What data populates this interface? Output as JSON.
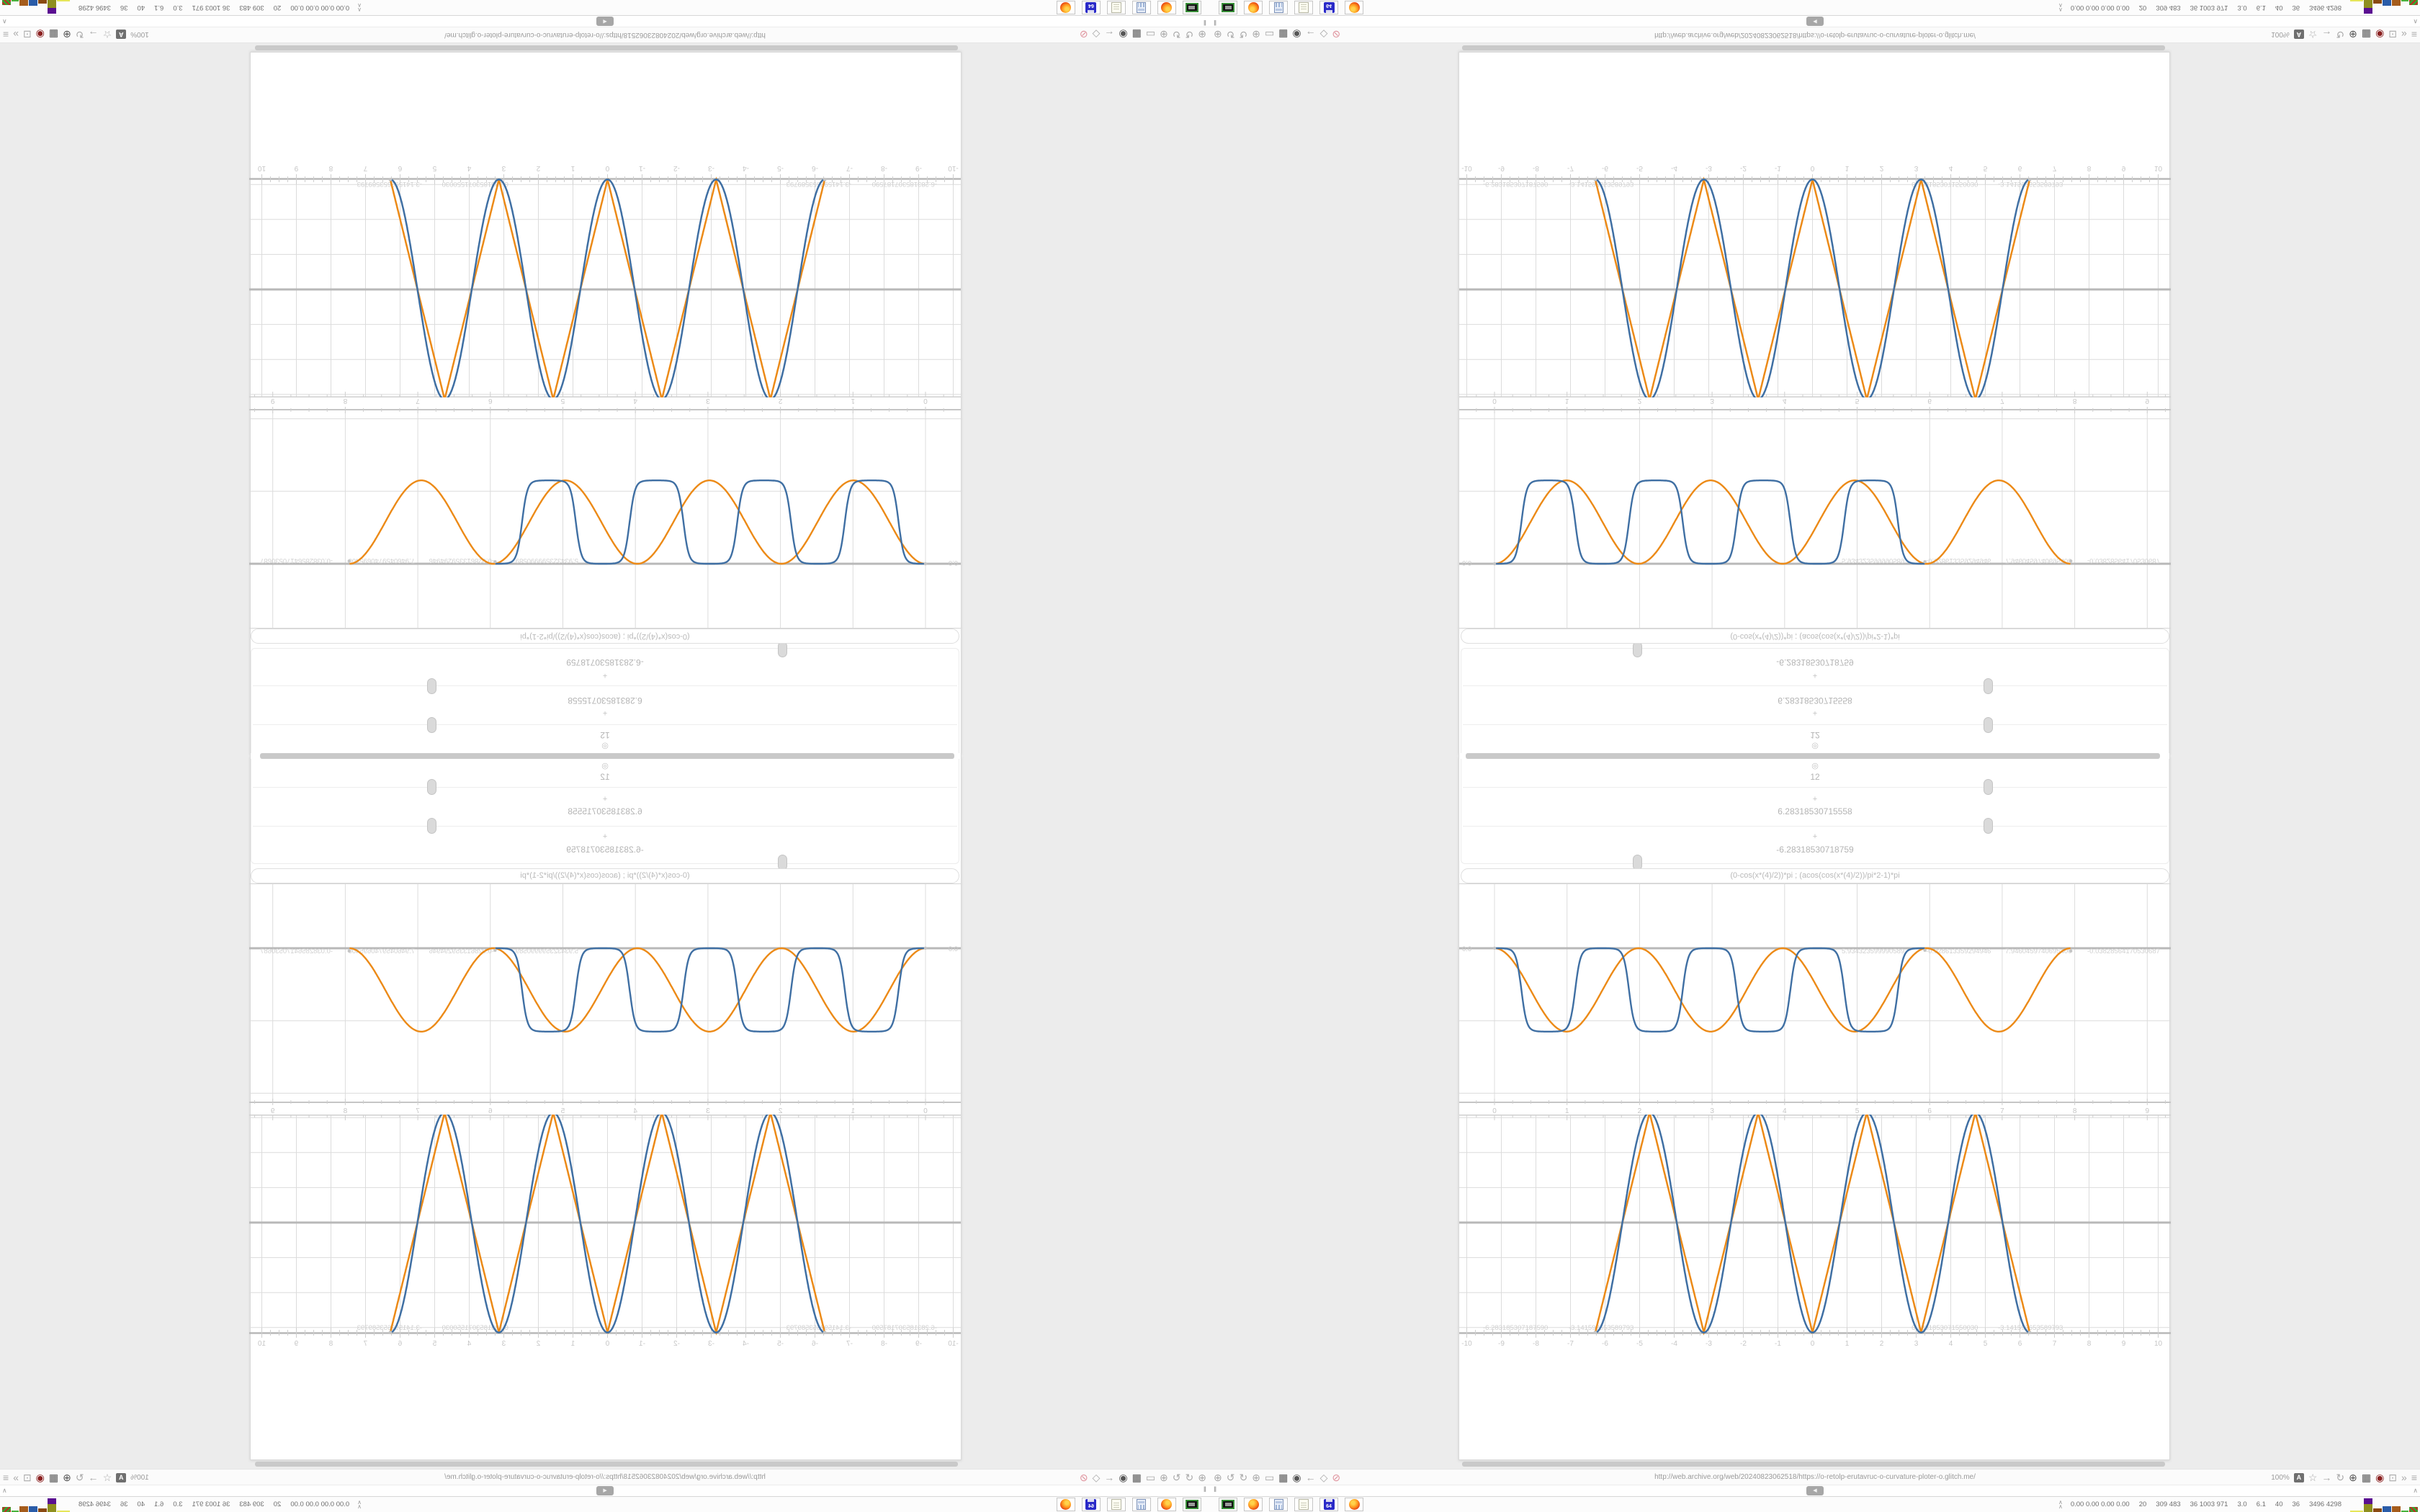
{
  "browser": {
    "url": "http://web.archive.org/web/20240823062518/https://o-retolp-erutavruc-o-curvature-ploter-o.glitch.me/",
    "zoom_level": "100%",
    "left_icons": [
      {
        "name": "zoom-circle-icon",
        "glyph": "⊕"
      },
      {
        "name": "gauge-left-icon",
        "glyph": "↺"
      },
      {
        "name": "gauge-right-icon",
        "glyph": "↻"
      },
      {
        "name": "globe-plus-icon",
        "glyph": "⊕"
      },
      {
        "name": "folder-icon",
        "glyph": "▭"
      },
      {
        "name": "trash-icon",
        "glyph": "▦",
        "dark": true
      },
      {
        "name": "badge-icon",
        "glyph": "◉",
        "dark": true
      },
      {
        "name": "back-arrow-icon",
        "glyph": "←"
      },
      {
        "name": "shield-outline-icon",
        "glyph": "◇"
      },
      {
        "name": "no-bookmark-icon",
        "glyph": "⊘",
        "color": "#de8f9a"
      }
    ],
    "right_icons": [
      {
        "name": "translate-icon",
        "glyph": "A",
        "boxed": true
      },
      {
        "name": "star-icon",
        "glyph": "☆"
      },
      {
        "name": "forward-arrow-icon",
        "glyph": "→"
      },
      {
        "name": "reload-icon",
        "glyph": "↻"
      },
      {
        "name": "globe-icon",
        "glyph": "⊕",
        "dark": true
      },
      {
        "name": "trash-icon-2",
        "glyph": "▦",
        "dark": true
      },
      {
        "name": "shield-alert-icon",
        "glyph": "◉",
        "color": "#8a2020"
      },
      {
        "name": "puzzle-icon",
        "glyph": "⊡"
      },
      {
        "name": "overflow-chevrons-icon",
        "glyph": "»"
      },
      {
        "name": "menu-icon",
        "glyph": "≡"
      }
    ],
    "substrip": {
      "left_glyph": "‖",
      "badge_glyph": "◀",
      "right_glyph": "∧"
    }
  },
  "status_bar": {
    "expand_glyph": "∧",
    "stats": [
      "0.00 0.00 0.00 0.00",
      "20",
      "309 483",
      "36 1003 971",
      "3.0",
      "6.1",
      "40",
      "36",
      "3496 4298"
    ],
    "apps": [
      "terminal",
      "firefox",
      "calculator",
      "notepad",
      "floppy64",
      "firefox"
    ],
    "blocks": [
      {
        "color": "#e6e65a",
        "w": 18,
        "h": 2
      },
      {
        "color": "#8f8f1e",
        "w": 12,
        "h": 11,
        "cap_color": "#5a0f91",
        "cap_h": 8
      },
      {
        "color": "#8a4a12",
        "w": 12,
        "h": 5
      },
      {
        "color": "#2a5ca8",
        "w": 12,
        "h": 8
      },
      {
        "color": "#a55c1c",
        "w": 12,
        "h": 8
      },
      {
        "color": "#49b23c",
        "w": 10,
        "h": 2
      },
      {
        "color": "#3f9d2f",
        "w": 12,
        "h": 7,
        "speckle": "#cc2222"
      }
    ]
  },
  "page": {
    "rows": [
      {
        "icon": "◎",
        "value": "12"
      },
      {
        "icon": "+",
        "value": "6.28318530715558"
      },
      {
        "icon": "+",
        "value": "-6.28318530718759"
      }
    ],
    "formula": "(0-cos(x*(4)/2))*pi ; (acos(cos(x*(4)/2))/pi*2-1)*pi"
  },
  "chart_data": [
    {
      "type": "line",
      "panel": "upper-wave-panel",
      "x_range": [
        -0.49,
        9.32
      ],
      "y_range": [
        -2.14,
        0.89
      ],
      "grid": true,
      "x_ticks": [
        "0",
        "1",
        "2",
        "3",
        "4",
        "5",
        "6",
        "7",
        "8",
        "9"
      ],
      "zero_line_label": "0.0",
      "series": [
        {
          "name": "blue-smoothed-square",
          "color": "#3f6fa3",
          "shape": "smoothed_square",
          "depth": -1.15,
          "period": 1.4834,
          "t_start": 0,
          "t_end": 5.934323599990589
        },
        {
          "name": "orange-cosine",
          "color": "#ec8a17",
          "shape": "cosine_dip",
          "depth": -1.15,
          "period": 1.9865,
          "t_start": 0,
          "t_end": 7.94604597406954
        }
      ],
      "endpoint_labels": [
        {
          "text": "5.934323599990589",
          "x": 531
        },
        {
          "text": "-0.028613359294946",
          "x": 648
        },
        {
          "text": "7.9460459740695400",
          "x": 758
        },
        {
          "text": "-0.03828564170530687",
          "x": 872
        }
      ]
    },
    {
      "type": "line",
      "panel": "lower-peaks-panel",
      "x_range": [
        -10.3,
        10.3
      ],
      "y_range": [
        -3.25,
        3.1
      ],
      "grid": true,
      "x_ticks": [
        "-10",
        "-9",
        "-8",
        "-7",
        "-6",
        "-5",
        "-4",
        "-3",
        "-2",
        "-1",
        "0",
        "1",
        "2",
        "3",
        "4",
        "5",
        "6",
        "7",
        "8",
        "9",
        "10"
      ],
      "series": [
        {
          "name": "blue-sine",
          "color": "#3f6fa3",
          "shape": "sine",
          "formula": "y = -pi*cos(2x)",
          "x_span": [
            -6.283185307,
            6.283185307
          ],
          "amplitude": 3.14159265
        },
        {
          "name": "orange-triangle",
          "color": "#ec8a17",
          "shape": "triangle",
          "formula": "y = pi*tri(2x)",
          "x_span": [
            -6.283185307,
            6.283185307
          ],
          "amplitude": 3.14159265
        }
      ],
      "endpoint_labels": [
        {
          "text": "-6.283185307187590",
          "x": 33
        },
        {
          "text": "-3.141592653589793",
          "x": 152
        },
        {
          "text": "6.2831853071550030",
          "x": 628
        },
        {
          "text": "-3.141592653589793",
          "x": 748
        }
      ]
    }
  ],
  "quadrants": [
    {
      "name": "top-left",
      "transform": "rotate-180"
    },
    {
      "name": "top-right",
      "transform": "flip-vertical"
    },
    {
      "name": "bottom-left",
      "transform": "flip-horizontal"
    },
    {
      "name": "bottom-right",
      "transform": "none"
    }
  ]
}
